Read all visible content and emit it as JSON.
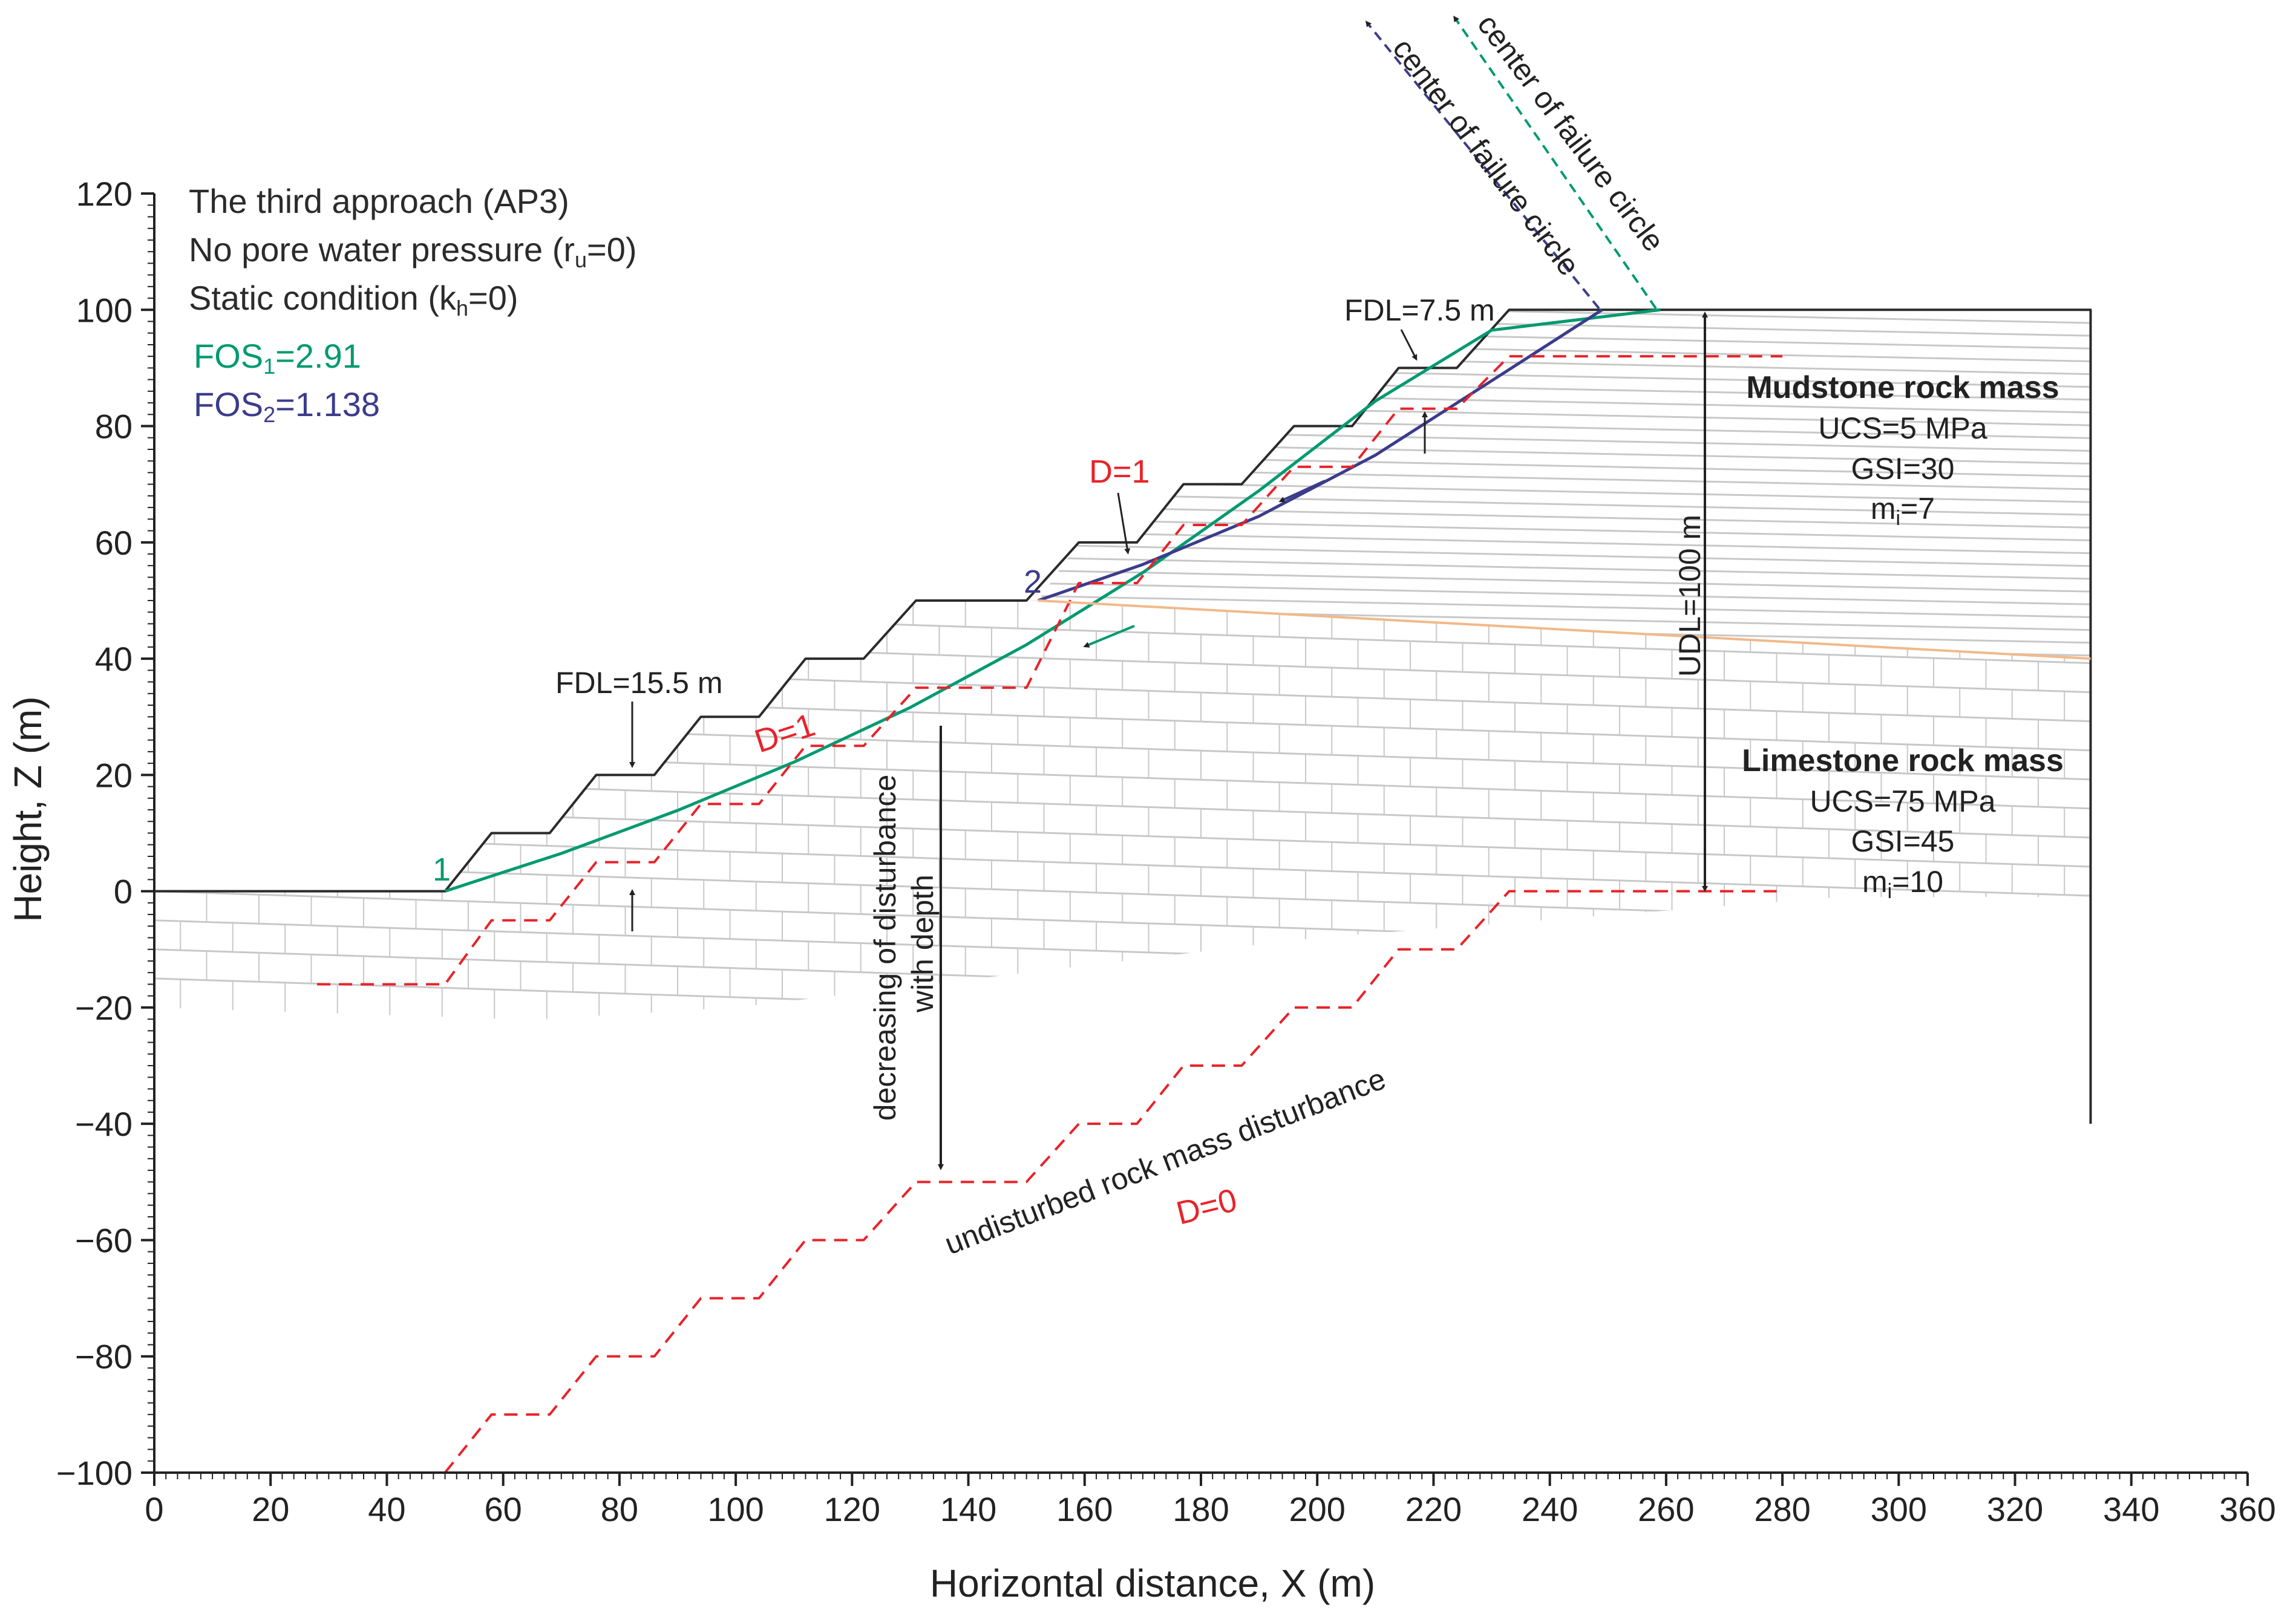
{
  "chart_data": {
    "type": "line",
    "title": "",
    "xlabel": "Horizontal distance, X (m)",
    "ylabel": "Height, Z (m)",
    "xlim": [
      0,
      360
    ],
    "ylim": [
      -100,
      120
    ],
    "x_ticks": [
      0,
      20,
      40,
      60,
      80,
      100,
      120,
      140,
      160,
      180,
      200,
      220,
      240,
      260,
      280,
      300,
      320,
      340,
      360
    ],
    "y_ticks": [
      120,
      100,
      80,
      60,
      40,
      20,
      0,
      -20,
      -40,
      -60,
      -80,
      -100
    ],
    "y_tick_labels": [
      "120",
      "100",
      "80",
      "60",
      "40",
      "20",
      "0",
      "−20",
      "−40",
      "−60",
      "−80",
      "−100"
    ],
    "grid": false,
    "series": [
      {
        "name": "Slope profile",
        "color": "#2b2b2b",
        "style": "solid",
        "points": [
          [
            0,
            0
          ],
          [
            50,
            0
          ],
          [
            58,
            10
          ],
          [
            68,
            10
          ],
          [
            76,
            20
          ],
          [
            86,
            20
          ],
          [
            94,
            30
          ],
          [
            104,
            30
          ],
          [
            112,
            40
          ],
          [
            122,
            40
          ],
          [
            131,
            50
          ],
          [
            150,
            50
          ],
          [
            159,
            60
          ],
          [
            169,
            60
          ],
          [
            177,
            70
          ],
          [
            187,
            70
          ],
          [
            196,
            80
          ],
          [
            206,
            80
          ],
          [
            214,
            90
          ],
          [
            224,
            90
          ],
          [
            233,
            100
          ],
          [
            333,
            100
          ],
          [
            333,
            -40
          ]
        ]
      },
      {
        "name": "Failure surface 1 (FOS1)",
        "color": "#009a70",
        "style": "solid",
        "points": [
          [
            50,
            0
          ],
          [
            70,
            6.5
          ],
          [
            90,
            13.9
          ],
          [
            110,
            22.2
          ],
          [
            130,
            31.6
          ],
          [
            150,
            42.4
          ],
          [
            170,
            54.8
          ],
          [
            190,
            68.9
          ],
          [
            210,
            84.3
          ],
          [
            230,
            96.5
          ],
          [
            259,
            100
          ]
        ]
      },
      {
        "name": "Failure surface 2 (FOS2)",
        "color": "#3c3c8c",
        "style": "solid",
        "points": [
          [
            152,
            50
          ],
          [
            170,
            56.2
          ],
          [
            190,
            64.5
          ],
          [
            210,
            75
          ],
          [
            230,
            87.8
          ],
          [
            249,
            100
          ]
        ]
      },
      {
        "name": "Disturbance zone boundary D=1 (slope)",
        "color": "#e8232a",
        "style": "dashed",
        "points": [
          [
            28,
            -16
          ],
          [
            50,
            -16
          ],
          [
            58,
            -5
          ],
          [
            68,
            -5
          ],
          [
            76,
            5
          ],
          [
            86,
            5
          ],
          [
            94,
            15
          ],
          [
            104,
            15
          ],
          [
            112,
            25
          ],
          [
            122,
            25
          ],
          [
            131,
            35
          ],
          [
            150,
            35
          ],
          [
            159,
            53
          ],
          [
            169,
            53
          ],
          [
            177,
            63
          ],
          [
            187,
            63
          ],
          [
            196,
            73
          ],
          [
            206,
            73
          ],
          [
            214,
            83
          ],
          [
            224,
            83
          ],
          [
            233,
            92
          ],
          [
            280,
            92
          ]
        ]
      },
      {
        "name": "Undisturbed boundary D=0",
        "color": "#e8232a",
        "style": "dashed",
        "points": [
          [
            50,
            -100
          ],
          [
            58,
            -90
          ],
          [
            68,
            -90
          ],
          [
            76,
            -80
          ],
          [
            86,
            -80
          ],
          [
            94,
            -70
          ],
          [
            104,
            -70
          ],
          [
            112,
            -60
          ],
          [
            122,
            -60
          ],
          [
            131,
            -50
          ],
          [
            150,
            -50
          ],
          [
            159,
            -40
          ],
          [
            169,
            -40
          ],
          [
            177,
            -30
          ],
          [
            187,
            -30
          ],
          [
            196,
            -20
          ],
          [
            206,
            -20
          ],
          [
            214,
            -10
          ],
          [
            224,
            -10
          ],
          [
            233,
            0
          ],
          [
            279,
            0
          ]
        ]
      },
      {
        "name": "Mudstone / Limestone contact",
        "color": "#f2b98a",
        "style": "solid",
        "points": [
          [
            152,
            50
          ],
          [
            333,
            40
          ]
        ]
      }
    ],
    "notes": {
      "approach": "The third approach (AP3)",
      "pore_pressure_main": "No pore water pressure (r",
      "pore_pressure_sub": "u",
      "pore_pressure_end": "=0)",
      "static_main": "Static condition (k",
      "static_sub": "h",
      "static_end": "=0)",
      "fos1_main": "FOS",
      "fos1_sub": "1",
      "fos1_end": "=2.91",
      "fos2_main": "FOS",
      "fos2_sub": "2",
      "fos2_end": "=1.138"
    },
    "annotations": {
      "fdl_upper": "FDL=7.5 m",
      "fdl_lower": "FDL=15.5 m",
      "d1_upper": "D=1",
      "d1_lower": "D=1",
      "d0": "D=0",
      "udl": "UDL=100 m",
      "point1": "1",
      "point2": "2",
      "center_blue": "center of failure circle",
      "center_green": "center of failure circle",
      "decreasing_line1": "decreasing of disturbance",
      "decreasing_line2": "with depth",
      "undisturbed": "undisturbed rock mass disturbance"
    },
    "materials": {
      "mudstone": {
        "name": "Mudstone rock mass",
        "ucs": "UCS=5 MPa",
        "gsi": "GSI=30",
        "mi_main": "m",
        "mi_sub": "i",
        "mi_end": "=7"
      },
      "limestone": {
        "name": "Limestone rock mass",
        "ucs": "UCS=75 MPa",
        "gsi": "GSI=45",
        "mi_main": "m",
        "mi_sub": "i",
        "mi_end": "=10"
      }
    },
    "colors": {
      "slope": "#2b2b2b",
      "fos1": "#009a70",
      "fos2": "#3c3c8c",
      "disturbance": "#e8232a",
      "contact": "#f2b98a",
      "hatch": "#c8c8c8"
    }
  }
}
